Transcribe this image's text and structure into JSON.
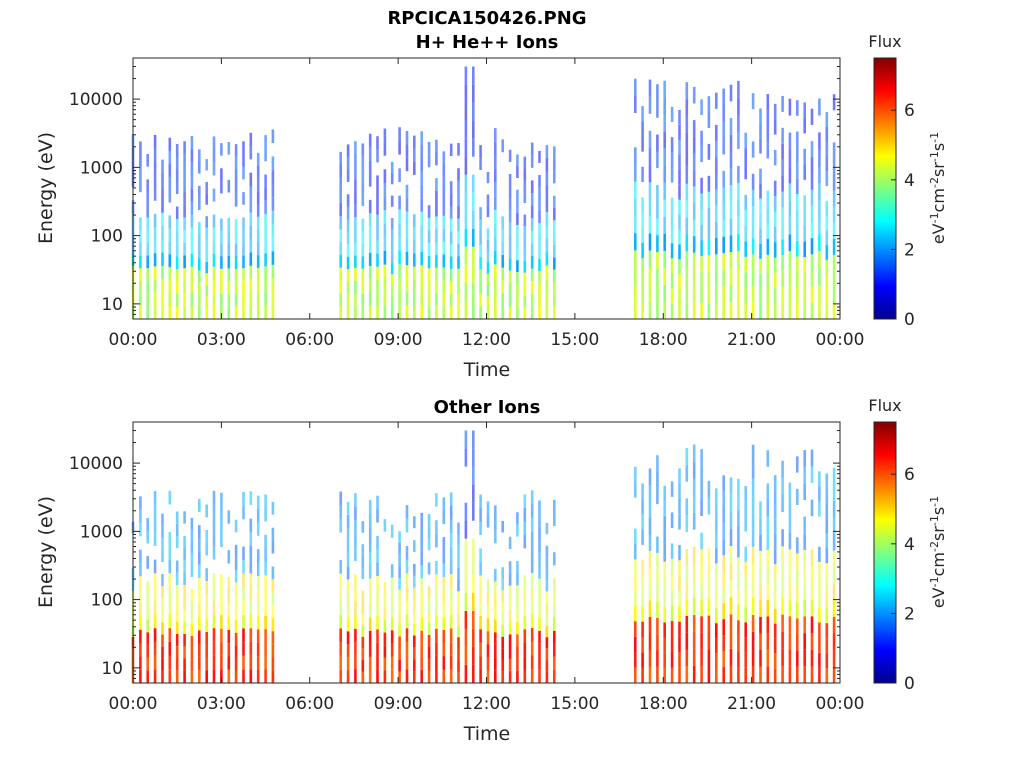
{
  "figure_title": "RPCICA150426.PNG",
  "chart_data": [
    {
      "type": "heatmap",
      "title": "H+ He++ Ions",
      "xlabel": "Time",
      "ylabel": "Energy (eV)",
      "y_scale": "log",
      "ylim": [
        6,
        40000
      ],
      "xlim": [
        "00:00",
        "24:00"
      ],
      "x_tick_labels": [
        "00:00",
        "03:00",
        "06:00",
        "09:00",
        "12:00",
        "15:00",
        "18:00",
        "21:00",
        "00:00"
      ],
      "y_tick_labels": [
        "10",
        "100",
        "1000",
        "10000"
      ],
      "y_ticks": [
        10,
        100,
        1000,
        10000
      ],
      "colorbar": {
        "label": "Flux",
        "units": "eV-1cm-2sr-1s-1",
        "units_parts": [
          {
            "text": "eV",
            "sup": false
          },
          {
            "text": "-1",
            "sup": true
          },
          {
            "text": "cm",
            "sup": false
          },
          {
            "text": "-2",
            "sup": true
          },
          {
            "text": "sr",
            "sup": false
          },
          {
            "text": "-1",
            "sup": true
          },
          {
            "text": "s",
            "sup": false
          },
          {
            "text": "-1",
            "sup": true
          }
        ],
        "range": [
          0,
          7.5
        ],
        "tick_labels": [
          "0",
          "2",
          "4",
          "6"
        ],
        "ticks": [
          0,
          2,
          4,
          6
        ],
        "colormap": "jet"
      },
      "data_intervals_hours": [
        [
          0.0,
          4.85
        ],
        [
          7.05,
          14.35
        ],
        [
          17.05,
          23.95
        ]
      ],
      "sweep_period_hours": 0.25,
      "profile": {
        "low_energy_flux": 4.2,
        "mid_energy_flux": 2.4,
        "high_energy_flux": 1.3,
        "high_energy_burst_hours": [
          11.3,
          11.7
        ],
        "high_energy_burst_flux": 0.9
      }
    },
    {
      "type": "heatmap",
      "title": "Other Ions",
      "xlabel": "Time",
      "ylabel": "Energy (eV)",
      "y_scale": "log",
      "ylim": [
        6,
        40000
      ],
      "xlim": [
        "00:00",
        "24:00"
      ],
      "x_tick_labels": [
        "00:00",
        "03:00",
        "06:00",
        "09:00",
        "12:00",
        "15:00",
        "18:00",
        "21:00",
        "00:00"
      ],
      "y_tick_labels": [
        "10",
        "100",
        "1000",
        "10000"
      ],
      "y_ticks": [
        10,
        100,
        1000,
        10000
      ],
      "colorbar": {
        "label": "Flux",
        "units": "eV-1cm-2sr-1s-1",
        "units_parts": [
          {
            "text": "eV",
            "sup": false
          },
          {
            "text": "-1",
            "sup": true
          },
          {
            "text": "cm",
            "sup": false
          },
          {
            "text": "-2",
            "sup": true
          },
          {
            "text": "sr",
            "sup": false
          },
          {
            "text": "-1",
            "sup": true
          },
          {
            "text": "s",
            "sup": false
          },
          {
            "text": "-1",
            "sup": true
          }
        ],
        "range": [
          0,
          7.5
        ],
        "tick_labels": [
          "0",
          "2",
          "4",
          "6"
        ],
        "ticks": [
          0,
          2,
          4,
          6
        ],
        "colormap": "jet"
      },
      "data_intervals_hours": [
        [
          0.0,
          4.85
        ],
        [
          7.05,
          14.35
        ],
        [
          17.05,
          23.95
        ]
      ],
      "sweep_period_hours": 0.25,
      "profile": {
        "low_energy_flux": 6.2,
        "mid_energy_flux": 4.6,
        "high_energy_flux": 2.0,
        "high_energy_burst_hours": [
          11.3,
          11.7
        ],
        "high_energy_burst_flux": 1.2
      }
    }
  ]
}
